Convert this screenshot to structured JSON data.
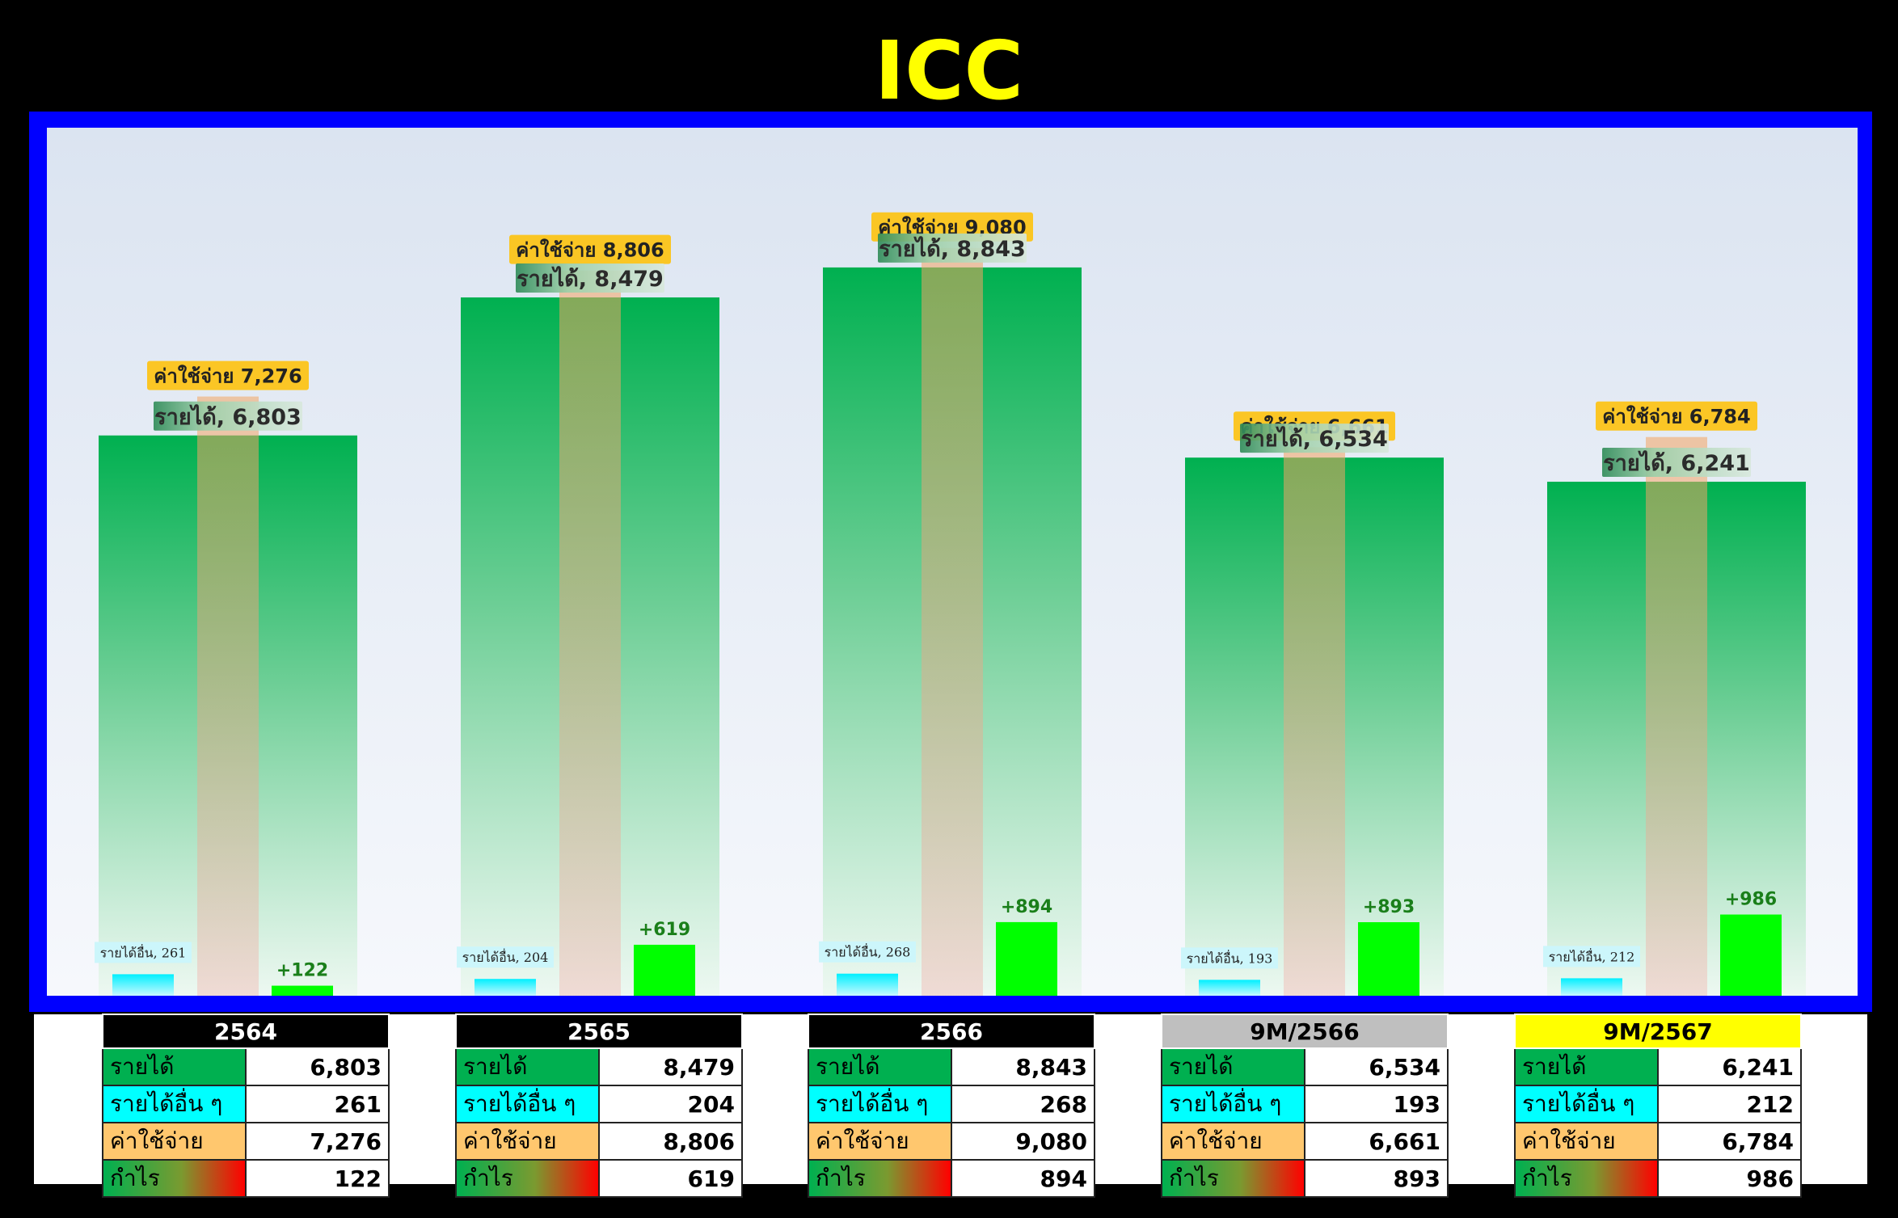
{
  "title": "ICC",
  "colors": {
    "title": "#ffff00",
    "frame": "#0000ff",
    "revenue": "#00b050",
    "other_income": "#00ffff",
    "expense": "#f4a460",
    "profit": "#00ff00",
    "profit_label": "#1a7f1a",
    "header_dark": "#000000",
    "header_9m2566": "#bfbfbf",
    "header_9m2567": "#ffff00"
  },
  "chart_data": {
    "type": "bar",
    "categories": [
      "2564",
      "2565",
      "2566",
      "9M/2566",
      "9M/2567"
    ],
    "series": [
      {
        "key": "other",
        "name": "รายได้อื่น",
        "values": [
          261,
          204,
          268,
          193,
          212
        ]
      },
      {
        "key": "revenue",
        "name": "รายได้",
        "values": [
          6803,
          8479,
          8843,
          6534,
          6241
        ]
      },
      {
        "key": "expense",
        "name": "ค่าใช้จ่าย",
        "values": [
          7276,
          8806,
          9080,
          6661,
          6784
        ]
      },
      {
        "key": "profit",
        "name": "",
        "values": [
          122,
          619,
          894,
          893,
          986
        ]
      }
    ],
    "data_labels": {
      "revenue": [
        "รายได้, 6,803",
        "รายได้, 8,479",
        "รายได้, 8,843",
        "รายได้, 6,534",
        "รายได้, 6,241"
      ],
      "expense": [
        "ค่าใช้จ่าย 7,276",
        "ค่าใช้จ่าย 8,806",
        "ค่าใช้จ่าย 9,080",
        "ค่าใช้จ่าย 6,661",
        "ค่าใช้จ่าย 6,784"
      ],
      "other": [
        "รายได้อื่น, 261",
        "รายได้อื่น, 204",
        "รายได้อื่น, 268",
        "รายได้อื่น, 193",
        "รายได้อื่น, 212"
      ],
      "profit": [
        "+122",
        "+619",
        "+894",
        "+893",
        "+986"
      ]
    },
    "ylim": [
      0,
      10000
    ],
    "grid": false,
    "title": "ICC",
    "xlabel": "",
    "ylabel": ""
  },
  "tables": [
    {
      "header": "2564",
      "header_style": "dark",
      "rows": [
        {
          "label": "รายได้",
          "value": "6,803",
          "kind": "revenue"
        },
        {
          "label": "รายได้อื่น ๆ",
          "value": "261",
          "kind": "other"
        },
        {
          "label": "ค่าใช้จ่าย",
          "value": "7,276",
          "kind": "expense"
        },
        {
          "label": "กำไร",
          "value": "122",
          "kind": "profit"
        }
      ]
    },
    {
      "header": "2565",
      "header_style": "dark",
      "rows": [
        {
          "label": "รายได้",
          "value": "8,479",
          "kind": "revenue"
        },
        {
          "label": "รายได้อื่น ๆ",
          "value": "204",
          "kind": "other"
        },
        {
          "label": "ค่าใช้จ่าย",
          "value": "8,806",
          "kind": "expense"
        },
        {
          "label": "กำไร",
          "value": "619",
          "kind": "profit"
        }
      ]
    },
    {
      "header": "2566",
      "header_style": "dark",
      "rows": [
        {
          "label": "รายได้",
          "value": "8,843",
          "kind": "revenue"
        },
        {
          "label": "รายได้อื่น ๆ",
          "value": "268",
          "kind": "other"
        },
        {
          "label": "ค่าใช้จ่าย",
          "value": "9,080",
          "kind": "expense"
        },
        {
          "label": "กำไร",
          "value": "894",
          "kind": "profit"
        }
      ]
    },
    {
      "header": "9M/2566",
      "header_style": "gray",
      "rows": [
        {
          "label": "รายได้",
          "value": "6,534",
          "kind": "revenue"
        },
        {
          "label": "รายได้อื่น ๆ",
          "value": "193",
          "kind": "other"
        },
        {
          "label": "ค่าใช้จ่าย",
          "value": "6,661",
          "kind": "expense"
        },
        {
          "label": "กำไร",
          "value": "893",
          "kind": "profit"
        }
      ]
    },
    {
      "header": "9M/2567",
      "header_style": "yellow",
      "rows": [
        {
          "label": "รายได้",
          "value": "6,241",
          "kind": "revenue"
        },
        {
          "label": "รายได้อื่น ๆ",
          "value": "212",
          "kind": "other"
        },
        {
          "label": "ค่าใช้จ่าย",
          "value": "6,784",
          "kind": "expense"
        },
        {
          "label": "กำไร",
          "value": "986",
          "kind": "profit"
        }
      ]
    }
  ]
}
